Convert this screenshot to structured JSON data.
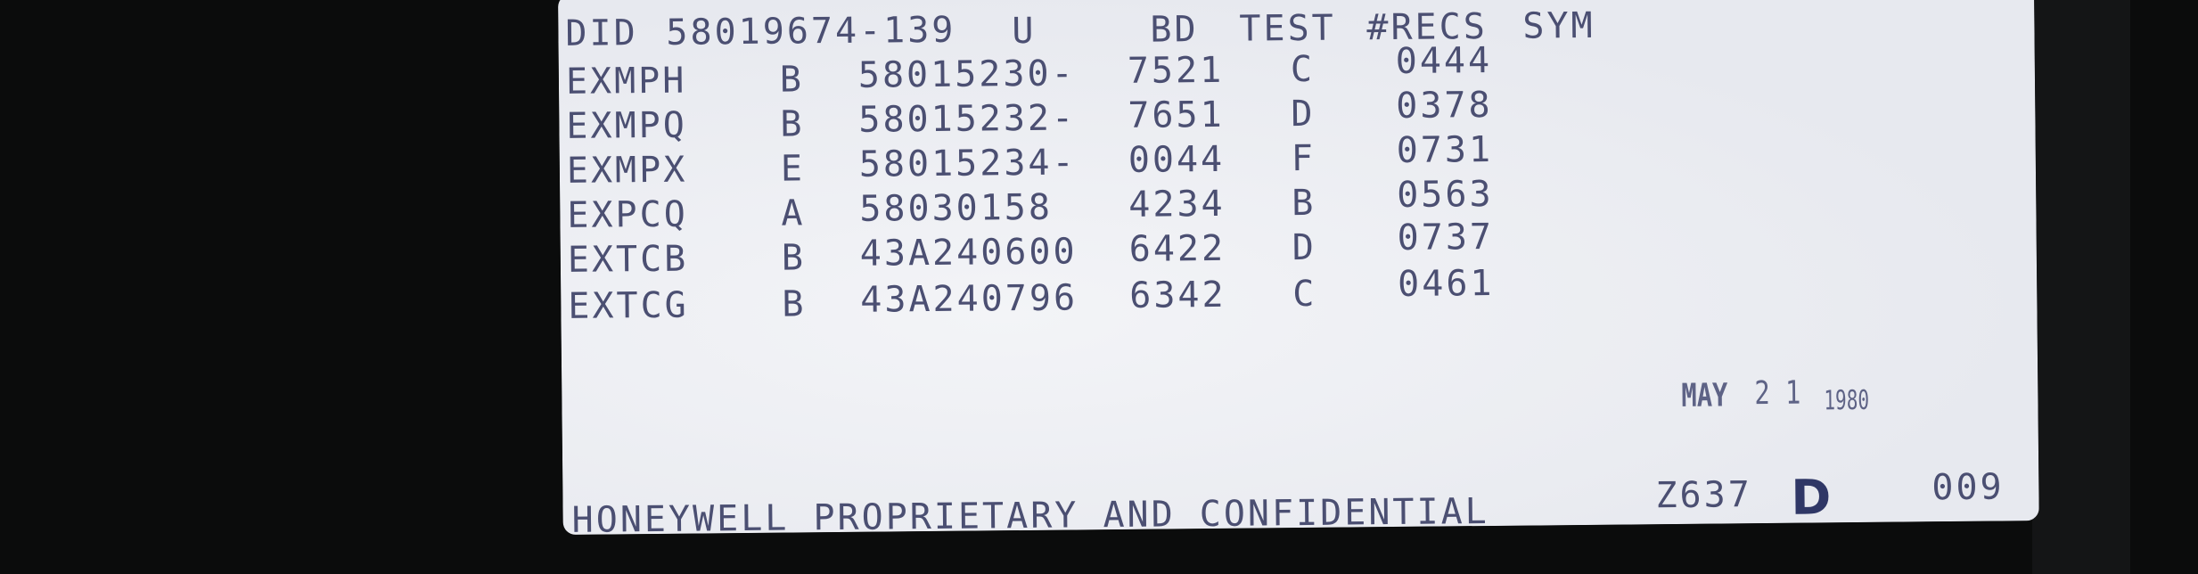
{
  "header": [
    "DID",
    "58019674-139",
    "U",
    "BD",
    "TEST",
    "#RECS",
    "SYM"
  ],
  "rows": [
    [
      "EXMPH",
      "B",
      "58015230-",
      "7521",
      "C",
      "0444"
    ],
    [
      "EXMPQ",
      "B",
      "58015232-",
      "7651",
      "D",
      "0378"
    ],
    [
      "EXMPX",
      "E",
      "58015234-",
      "0044",
      "F",
      "0731"
    ],
    [
      "EXPCQ",
      "A",
      "58030158",
      "4234",
      "B",
      "0563"
    ],
    [
      "EXTCB",
      "B",
      "43A240600",
      "6422",
      "D",
      "0737"
    ],
    [
      "EXTCG",
      "B",
      "43A240796",
      "6342",
      "C",
      "0461"
    ]
  ],
  "stamp": {
    "month": "MAY",
    "day": "2 1",
    "year": "1980"
  },
  "footer": {
    "notice": "HONEYWELL PROPRIETARY AND CONFIDENTIAL",
    "code": "Z637",
    "mark": "D",
    "number": "009"
  },
  "colors": {
    "ink": "#4b4f72",
    "paper": "#eceef3",
    "background": "#0b0c0c"
  }
}
